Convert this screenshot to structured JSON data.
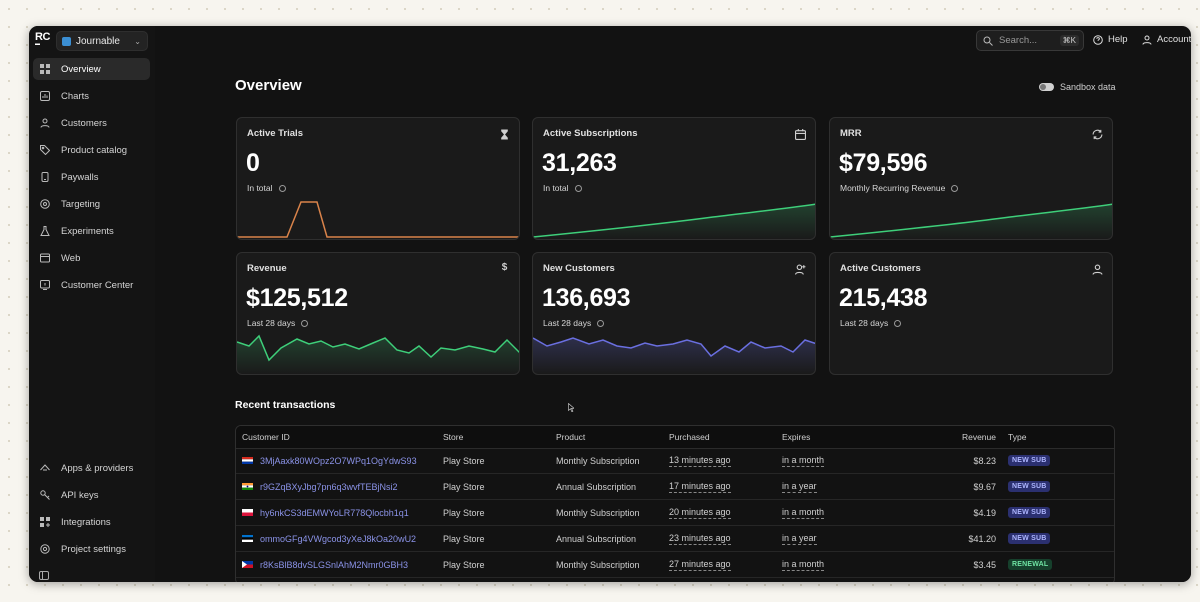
{
  "app": {
    "logo_text": "RC",
    "project": "Journable"
  },
  "nav": {
    "items": [
      {
        "label": "Overview",
        "icon": "grid-icon"
      },
      {
        "label": "Charts",
        "icon": "chart-icon"
      },
      {
        "label": "Customers",
        "icon": "user-icon"
      },
      {
        "label": "Product catalog",
        "icon": "tag-icon"
      },
      {
        "label": "Paywalls",
        "icon": "phone-icon"
      },
      {
        "label": "Targeting",
        "icon": "target-icon"
      },
      {
        "label": "Experiments",
        "icon": "flask-icon"
      },
      {
        "label": "Web",
        "icon": "browser-icon"
      },
      {
        "label": "Customer Center",
        "icon": "help-box-icon"
      }
    ],
    "bottom_items": [
      {
        "label": "Apps & providers",
        "icon": "apps-icon"
      },
      {
        "label": "API keys",
        "icon": "key-icon"
      },
      {
        "label": "Integrations",
        "icon": "grid-plus-icon"
      },
      {
        "label": "Project settings",
        "icon": "gear-icon"
      }
    ]
  },
  "topbar": {
    "search_placeholder": "Search...",
    "search_shortcut": "⌘K",
    "help": "Help",
    "account": "Account"
  },
  "page": {
    "title": "Overview",
    "sandbox_label": "Sandbox data"
  },
  "cards": [
    {
      "title": "Active Trials",
      "value": "0",
      "sub": "In total",
      "icon": "hourglass-icon",
      "color": "#d9834a"
    },
    {
      "title": "Active Subscriptions",
      "value": "31,263",
      "sub": "In total",
      "icon": "calendar-icon",
      "color": "#3ecf7a"
    },
    {
      "title": "MRR",
      "value": "$79,596",
      "sub": "Monthly Recurring Revenue",
      "icon": "refresh-icon",
      "color": "#3ecf7a"
    },
    {
      "title": "Revenue",
      "value": "$125,512",
      "sub": "Last 28 days",
      "icon": "dollar-icon",
      "color": "#3ecf7a"
    },
    {
      "title": "New Customers",
      "value": "136,693",
      "sub": "Last 28 days",
      "icon": "user-plus-icon",
      "color": "#6a6fe0"
    },
    {
      "title": "Active Customers",
      "value": "215,438",
      "sub": "Last 28 days",
      "icon": "user-icon",
      "color": "#3ecf7a"
    }
  ],
  "transactions": {
    "title": "Recent transactions",
    "columns": [
      "Customer ID",
      "Store",
      "Product",
      "Purchased",
      "Expires",
      "Revenue",
      "Type"
    ],
    "rows": [
      {
        "id": "3MjAaxk80WOpz2O7WPq1OgYdwS93",
        "store": "Play Store",
        "product": "Monthly Subscription",
        "purchased": "13 minutes ago",
        "expires": "in a month",
        "revenue": "$8.23",
        "type": "NEW SUB",
        "flag": "paraguay"
      },
      {
        "id": "r9GZqBXyJbg7pn6q3wvfTEBjNsi2",
        "store": "Play Store",
        "product": "Annual Subscription",
        "purchased": "17 minutes ago",
        "expires": "in a year",
        "revenue": "$9.67",
        "type": "NEW SUB",
        "flag": "india"
      },
      {
        "id": "hy6nkCS3dEMWYoLR778Qlocbh1q1",
        "store": "Play Store",
        "product": "Monthly Subscription",
        "purchased": "20 minutes ago",
        "expires": "in a month",
        "revenue": "$4.19",
        "type": "NEW SUB",
        "flag": "poland"
      },
      {
        "id": "ommoGFg4VWgcod3yXeJ8kOa20wU2",
        "store": "Play Store",
        "product": "Annual Subscription",
        "purchased": "23 minutes ago",
        "expires": "in a year",
        "revenue": "$41.20",
        "type": "NEW SUB",
        "flag": "estonia"
      },
      {
        "id": "r8KsBlB8dvSLGSnlAhM2Nmr0GBH3",
        "store": "Play Store",
        "product": "Monthly Subscription",
        "purchased": "27 minutes ago",
        "expires": "in a month",
        "revenue": "$3.45",
        "type": "RENEWAL",
        "flag": "philippines"
      }
    ]
  }
}
